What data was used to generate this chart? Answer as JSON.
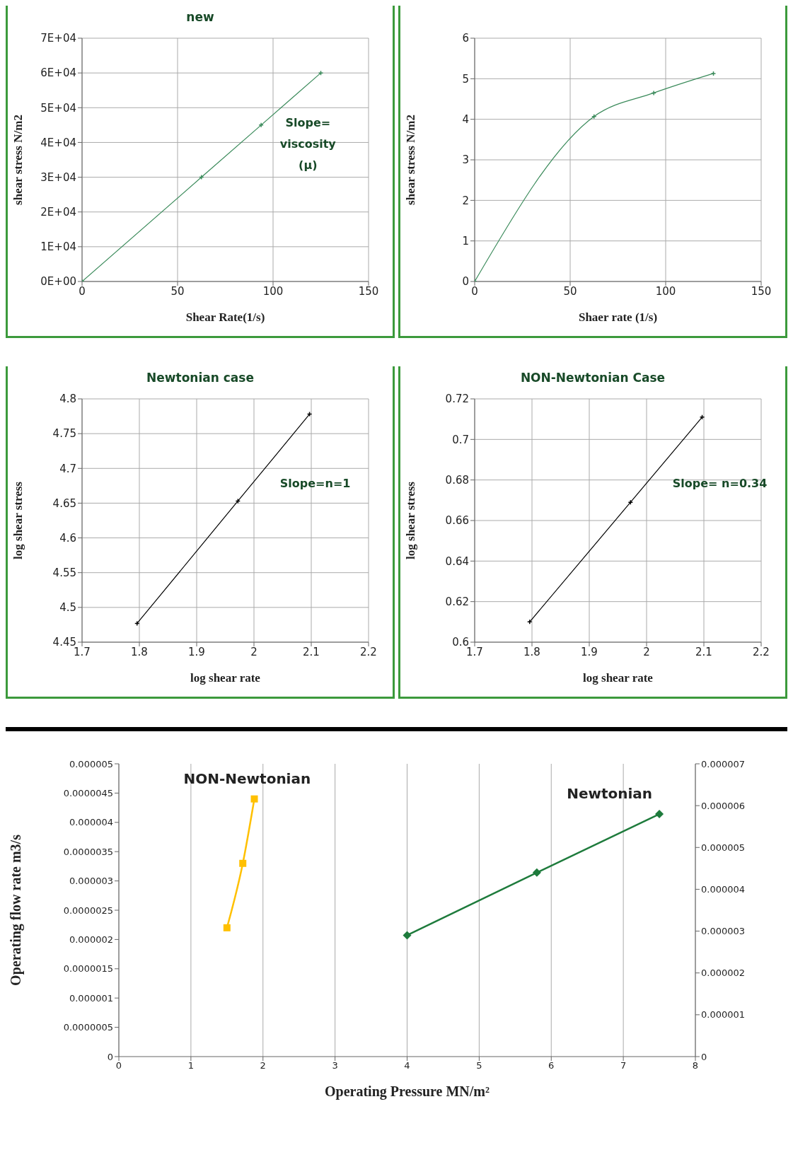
{
  "chart_data": [
    {
      "type": "line",
      "title": "new",
      "xlabel": "Shear Rate(1/s)",
      "ylabel": "shear stress N/m2",
      "x": [
        0,
        62.5,
        93.75,
        125
      ],
      "series": [
        {
          "color": "#3a8a5a",
          "values": [
            0,
            30000,
            45000,
            60000
          ]
        }
      ],
      "xlim": [
        0,
        150
      ],
      "xticks": [
        0,
        50,
        100,
        150
      ],
      "ylim": [
        0,
        70000
      ],
      "yticks": [
        {
          "value": 0,
          "label": "0E+00"
        },
        {
          "value": 10000,
          "label": "1E+04"
        },
        {
          "value": 20000,
          "label": "2E+04"
        },
        {
          "value": 30000,
          "label": "3E+04"
        },
        {
          "value": 40000,
          "label": "4E+04"
        },
        {
          "value": 50000,
          "label": "5E+04"
        },
        {
          "value": 60000,
          "label": "6E+04"
        },
        {
          "value": 70000,
          "label": "7E+04"
        }
      ],
      "grid": true,
      "marker": "cross",
      "annotations": [
        "Slope=\nviscosity\n(μ)"
      ]
    },
    {
      "type": "line",
      "xlabel": "Shaer rate (1/s)",
      "ylabel": "shear stress N/m2",
      "x": [
        0,
        62.5,
        93.75,
        125
      ],
      "series": [
        {
          "color": "#3a8a5a",
          "values": [
            0,
            4.07,
            4.65,
            5.13
          ]
        }
      ],
      "xlim": [
        0,
        150
      ],
      "xticks": [
        0,
        50,
        100,
        150
      ],
      "ylim": [
        0,
        6
      ],
      "yticks": [
        0,
        1,
        2,
        3,
        4,
        5,
        6
      ],
      "grid": true,
      "marker": "cross"
    },
    {
      "type": "line",
      "title": "Newtonian case",
      "xlabel": "log shear rate",
      "ylabel": "log shear stress",
      "x": [
        1.796,
        1.972,
        2.097
      ],
      "series": [
        {
          "color": "#000000",
          "values": [
            4.477,
            4.653,
            4.778
          ]
        }
      ],
      "xlim": [
        1.7,
        2.2
      ],
      "xticks": [
        1.7,
        1.8,
        1.9,
        2,
        2.1,
        2.2
      ],
      "ylim": [
        4.45,
        4.8
      ],
      "yticks": [
        4.45,
        4.5,
        4.55,
        4.6,
        4.65,
        4.7,
        4.75,
        4.8
      ],
      "grid": true,
      "marker": "cross",
      "annotations": [
        "Slope=n=1"
      ]
    },
    {
      "type": "line",
      "title": "NON-Newtonian Case",
      "xlabel": "log shear rate",
      "ylabel": "log shear stress",
      "x": [
        1.796,
        1.972,
        2.097
      ],
      "series": [
        {
          "color": "#000000",
          "values": [
            0.61,
            0.669,
            0.711
          ]
        }
      ],
      "xlim": [
        1.7,
        2.2
      ],
      "xticks": [
        1.7,
        1.8,
        1.9,
        2,
        2.1,
        2.2
      ],
      "ylim": [
        0.6,
        0.72
      ],
      "yticks": [
        0.6,
        0.62,
        0.64,
        0.66,
        0.68,
        0.7,
        0.72
      ],
      "grid": true,
      "marker": "cross",
      "annotations": [
        "Slope= n=0.34"
      ]
    },
    {
      "type": "line",
      "xlabel": "Operating Pressure MN/m²",
      "ylabel": "Operating flow rate m3/s",
      "series": [
        {
          "name": "NON-Newtonian",
          "color": "#ffc000",
          "marker": "square",
          "x": [
            1.5,
            1.72,
            1.88
          ],
          "values": [
            2.2e-06,
            3.3e-06,
            4.4e-06
          ]
        },
        {
          "name": "Newtonian",
          "color": "#1e7b3c",
          "marker": "diamond",
          "axis": "y2",
          "x": [
            4,
            5.8,
            7.5
          ],
          "values": [
            2.9e-06,
            4.4e-06,
            5.8e-06
          ]
        }
      ],
      "xlim": [
        0,
        8
      ],
      "xticks": [
        0,
        1,
        2,
        3,
        4,
        5,
        6,
        7,
        8
      ],
      "ylim": [
        0,
        5e-06
      ],
      "yticks": [
        {
          "value": 0,
          "label": "0"
        },
        {
          "value": 5e-07,
          "label": "0.0000005"
        },
        {
          "value": 1e-06,
          "label": "0.000001"
        },
        {
          "value": 1.5e-06,
          "label": "0.0000015"
        },
        {
          "value": 2e-06,
          "label": "0.000002"
        },
        {
          "value": 2.5e-06,
          "label": "0.0000025"
        },
        {
          "value": 3e-06,
          "label": "0.000003"
        },
        {
          "value": 3.5e-06,
          "label": "0.0000035"
        },
        {
          "value": 4e-06,
          "label": "0.000004"
        },
        {
          "value": 4.5e-06,
          "label": "0.0000045"
        },
        {
          "value": 5e-06,
          "label": "0.000005"
        }
      ],
      "y2lim": [
        0,
        7e-06
      ],
      "y2ticks": [
        {
          "value": 0,
          "label": "0"
        },
        {
          "value": 1e-06,
          "label": "0.000001"
        },
        {
          "value": 2e-06,
          "label": "0.000002"
        },
        {
          "value": 3e-06,
          "label": "0.000003"
        },
        {
          "value": 4e-06,
          "label": "0.000004"
        },
        {
          "value": 5e-06,
          "label": "0.000005"
        },
        {
          "value": 6e-06,
          "label": "0.000006"
        },
        {
          "value": 7e-06,
          "label": "0.000007"
        }
      ],
      "grid": "x"
    }
  ]
}
